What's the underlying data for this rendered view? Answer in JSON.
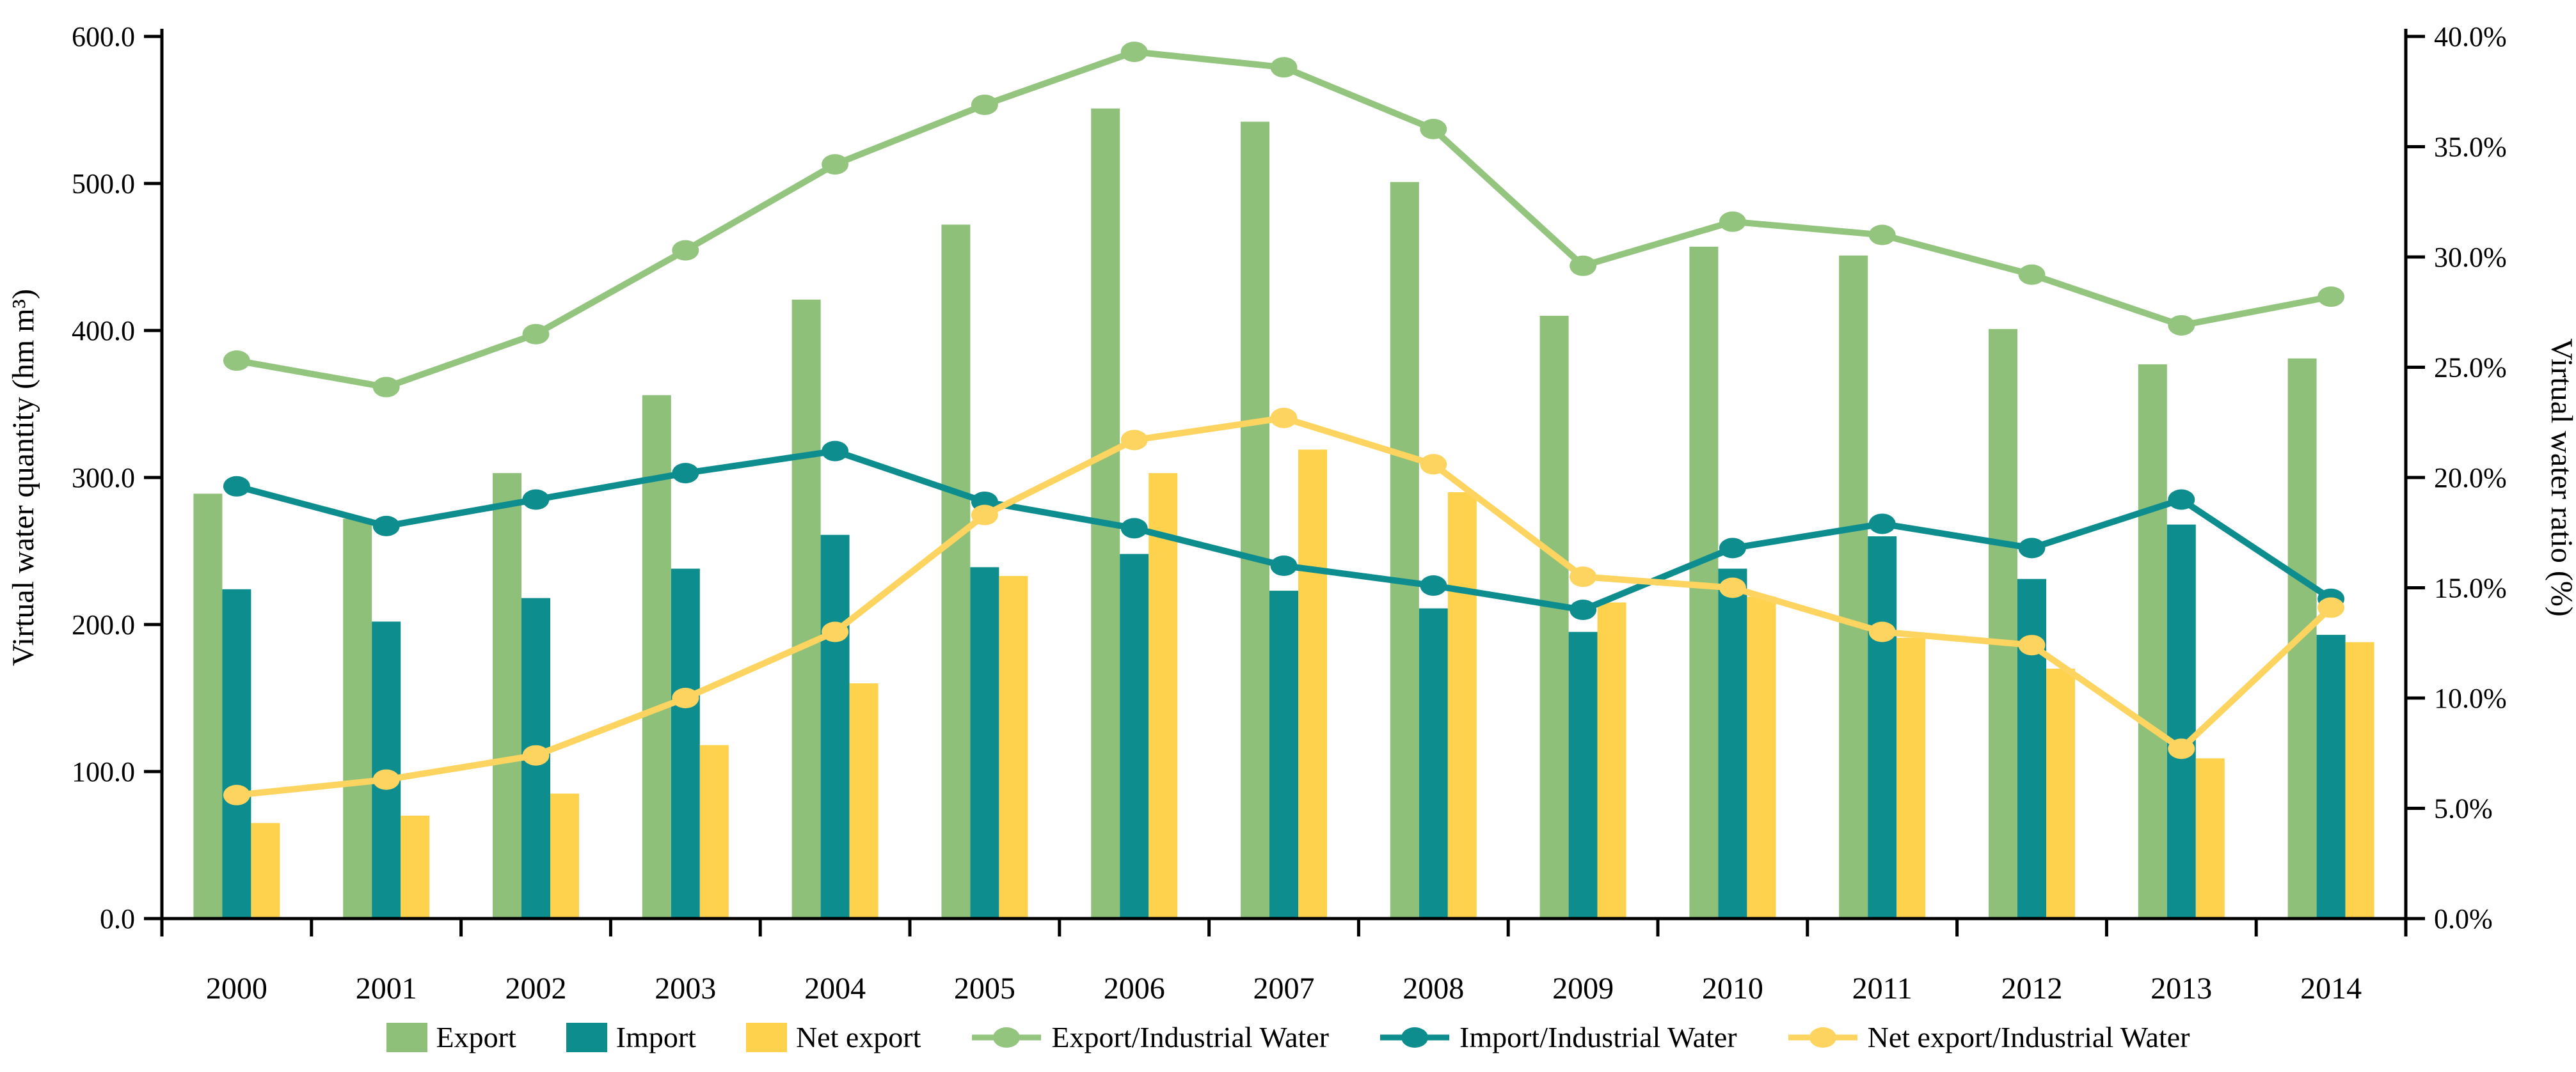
{
  "chart_data": {
    "type": "bar+line",
    "categories": [
      "2000",
      "2001",
      "2002",
      "2003",
      "2004",
      "2005",
      "2006",
      "2007",
      "2008",
      "2009",
      "2010",
      "2011",
      "2012",
      "2013",
      "2014"
    ],
    "bar_series": [
      {
        "name": "Export",
        "color": "#8FC07A",
        "values": [
          289,
          272,
          303,
          356,
          421,
          472,
          551,
          542,
          501,
          410,
          457,
          451,
          401,
          377,
          381
        ]
      },
      {
        "name": "Import",
        "color": "#0E8D8F",
        "values": [
          224,
          202,
          218,
          238,
          261,
          239,
          248,
          223,
          211,
          195,
          238,
          260,
          231,
          268,
          193
        ]
      },
      {
        "name": "Net export",
        "color": "#FFD24D",
        "values": [
          65,
          70,
          85,
          118,
          160,
          233,
          303,
          319,
          290,
          215,
          219,
          191,
          170,
          109,
          188
        ]
      }
    ],
    "line_series": [
      {
        "name": "Export/Industrial Water",
        "color": "#94C57F",
        "values_pct": [
          25.3,
          24.1,
          26.5,
          30.3,
          34.2,
          36.9,
          39.3,
          38.6,
          35.8,
          29.6,
          31.6,
          31.0,
          29.2,
          26.9,
          28.2
        ]
      },
      {
        "name": "Import/Industrial Water",
        "color": "#0E8D8F",
        "values_pct": [
          19.6,
          17.8,
          19.0,
          20.2,
          21.2,
          18.9,
          17.7,
          16.0,
          15.1,
          14.0,
          16.8,
          17.9,
          16.8,
          19.0,
          14.5
        ]
      },
      {
        "name": "Net export/Industrial Water",
        "color": "#FCD45F",
        "values_pct": [
          5.6,
          6.3,
          7.4,
          10.0,
          13.0,
          18.3,
          21.7,
          22.7,
          20.6,
          15.5,
          15.0,
          13.0,
          12.4,
          7.7,
          14.1
        ]
      }
    ],
    "y_axis_left": {
      "title": "Virtual water quantity (hm m³)",
      "min": 0,
      "max": 600,
      "step": 100,
      "tick_labels": [
        "0.0",
        "100.0",
        "200.0",
        "300.0",
        "400.0",
        "500.0",
        "600.0"
      ]
    },
    "y_axis_right": {
      "title": "Virtual water ratio (%)",
      "min": 0,
      "max": 40,
      "step": 5,
      "tick_labels": [
        "0.0%",
        "5.0%",
        "10.0%",
        "15.0%",
        "20.0%",
        "25.0%",
        "30.0%",
        "35.0%",
        "40.0%"
      ]
    },
    "x_axis": {
      "tick_labels": [
        "2000",
        "2001",
        "2002",
        "2003",
        "2004",
        "2005",
        "2006",
        "2007",
        "2008",
        "2009",
        "2010",
        "2011",
        "2012",
        "2013",
        "2014"
      ]
    },
    "legend_position": "bottom",
    "grid": false,
    "axis_color": "#000000"
  }
}
